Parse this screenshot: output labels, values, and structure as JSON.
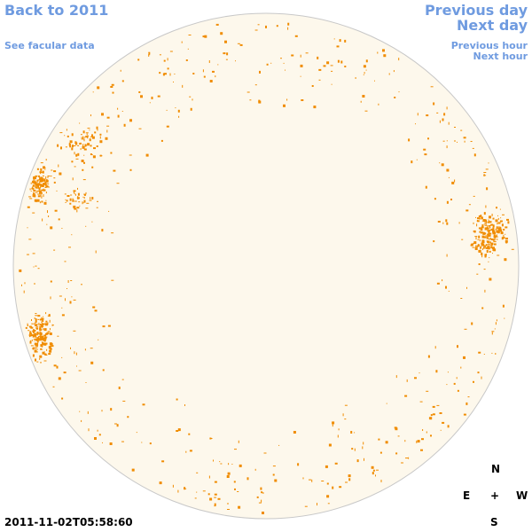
{
  "nav": {
    "back": "Back to 2011",
    "facular": "See facular data",
    "previous_day": "Previous day",
    "next_day": "Next day",
    "previous_hour": "Previous hour",
    "next_hour": "Next hour"
  },
  "timestamp": "2011-11-02T05:58:60",
  "compass": {
    "north": "N",
    "east": "E",
    "center": "+",
    "west": "W",
    "south": "S"
  }
}
